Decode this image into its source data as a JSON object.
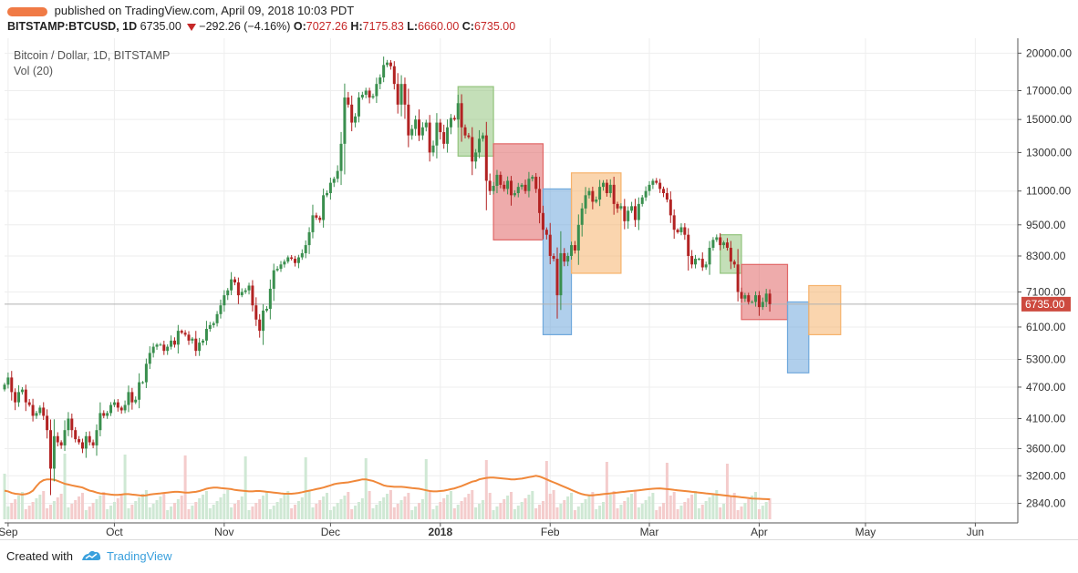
{
  "header": {
    "author_name": "",
    "published_text": "published on TradingView.com, April 09, 2018 10:03 PDT",
    "symbol": "BITSTAMP:BTCUSD, 1D",
    "last_price": "6735.00",
    "change": "−292.26 (−4.16%)",
    "o_label": "O:",
    "o_value": "7027.26",
    "h_label": "H:",
    "h_value": "7175.83",
    "l_label": "L:",
    "l_value": "6660.00",
    "c_label": "C:",
    "c_value": "6735.00"
  },
  "legend": {
    "series_title": "Bitcoin / Dollar, 1D, BITSTAMP",
    "volume_label": "Vol (20)"
  },
  "footer": {
    "created_with": "Created with",
    "brand": "TradingView"
  },
  "colors": {
    "up": "#3a8f4e",
    "down": "#b22222",
    "vol_up": "#cfe8d4",
    "vol_down": "#f4cccc",
    "vol_ma": "#f0883a",
    "price_tag": "#cd4a3f",
    "green_box": "#93c47d",
    "red_box": "#e06666",
    "blue_box": "#6fa8dc",
    "orange_box": "#f6b26b"
  },
  "chart_data": {
    "type": "candlestick",
    "title": "Bitcoin / Dollar, 1D, BITSTAMP",
    "y_scale": "log",
    "ylim": [
      2650,
      21000
    ],
    "y_ticks": [
      20000,
      17000,
      15000,
      13000,
      11000,
      9500,
      8300,
      7100,
      6100,
      5300,
      4700,
      4100,
      3600,
      3200,
      2840
    ],
    "y_tick_labels": [
      "20000.00",
      "17000.00",
      "15000.00",
      "13000.00",
      "11000.00",
      "9500.00",
      "8300.00",
      "7100.00",
      "6100.00",
      "5300.00",
      "4700.00",
      "4100.00",
      "3600.00",
      "3200.00",
      "2840.00"
    ],
    "x_start": "2018-08-31",
    "x_end": "2018-06-13",
    "x_ticks": [
      {
        "date": "2017-09-01",
        "label": "Sep",
        "bold": false
      },
      {
        "date": "2017-10-01",
        "label": "Oct",
        "bold": false
      },
      {
        "date": "2017-11-01",
        "label": "Nov",
        "bold": false
      },
      {
        "date": "2017-12-01",
        "label": "Dec",
        "bold": false
      },
      {
        "date": "2018-01-01",
        "label": "2018",
        "bold": true
      },
      {
        "date": "2018-02-01",
        "label": "Feb",
        "bold": false
      },
      {
        "date": "2018-03-01",
        "label": "Mar",
        "bold": false
      },
      {
        "date": "2018-04-01",
        "label": "Apr",
        "bold": false
      },
      {
        "date": "2018-05-01",
        "label": "May",
        "bold": false
      },
      {
        "date": "2018-06-01",
        "label": "Jun",
        "bold": false
      }
    ],
    "last_price": 6735,
    "last_price_label": "6735.00",
    "close_series": {
      "start_date": "2017-08-31",
      "values": [
        4750,
        4900,
        4600,
        4400,
        4600,
        4650,
        4400,
        4350,
        4150,
        4200,
        4300,
        4150,
        3900,
        3300,
        3800,
        3700,
        3650,
        3900,
        4100,
        3900,
        3750,
        3700,
        3600,
        3800,
        3700,
        3650,
        3900,
        4200,
        4150,
        4200,
        4350,
        4400,
        4300,
        4250,
        4350,
        4600,
        4400,
        4450,
        4800,
        4800,
        5200,
        5450,
        5600,
        5650,
        5650,
        5500,
        5600,
        5750,
        5650,
        6000,
        5950,
        5900,
        5750,
        5800,
        5500,
        5700,
        5750,
        6050,
        6150,
        6200,
        6450,
        6700,
        7000,
        7150,
        7500,
        7400,
        7000,
        7100,
        7150,
        7300,
        6700,
        6300,
        6000,
        6550,
        6600,
        7200,
        7800,
        7850,
        8000,
        8100,
        8250,
        8200,
        8050,
        8250,
        8400,
        8700,
        9200,
        9900,
        9800,
        9700,
        10800,
        10900,
        11400,
        11600,
        12000,
        13500,
        16500,
        16000,
        14800,
        15200,
        16500,
        16700,
        17000,
        16500,
        16600,
        17500,
        18000,
        19000,
        19200,
        18900,
        17500,
        16000,
        17500,
        16000,
        14000,
        14400,
        15000,
        14000,
        14500,
        14800,
        13000,
        13400,
        14800,
        14200,
        13500,
        14500,
        15100,
        15000,
        16100,
        14500,
        14000,
        13900,
        12500,
        13000,
        13800,
        14000,
        11500,
        11000,
        11250,
        11800,
        11300,
        11100,
        11500,
        10800,
        10900,
        11200,
        11300,
        11000,
        11600,
        11700,
        11100,
        10000,
        9300,
        9100,
        8300,
        8200,
        7000,
        8400,
        8100,
        8300,
        8700,
        8500,
        9500,
        10200,
        10800,
        11000,
        10500,
        10600,
        11200,
        11400,
        10900,
        11300,
        10400,
        10200,
        10300,
        9650,
        10100,
        10300,
        9700,
        10400,
        10700,
        11000,
        11300,
        11500,
        11400,
        11100,
        10900,
        10600,
        9900,
        9300,
        9200,
        9400,
        9100,
        8300,
        8000,
        8200,
        8200,
        7900,
        8000,
        8600,
        8900,
        9000,
        8700,
        8800,
        8600,
        8100,
        8000,
        7100,
        6900,
        7000,
        6800,
        6800,
        7000,
        6650,
        6800,
        7050,
        6735
      ]
    },
    "volume_ma": {
      "start_date": "2017-08-31",
      "values": [
        3000,
        2990,
        2970,
        2960,
        2955,
        2950,
        2955,
        2970,
        3000,
        3060,
        3110,
        3140,
        3150,
        3150,
        3145,
        3130,
        3110,
        3090,
        3080,
        3070,
        3060,
        3050,
        3040,
        3020,
        3000,
        2990,
        2975,
        2965,
        2960,
        2955,
        2950,
        2945,
        2945,
        2950,
        2955,
        2955,
        2950,
        2945,
        2940,
        2935,
        2940,
        2950,
        2955,
        2960,
        2965,
        2970,
        2975,
        2980,
        2985,
        2985,
        2980,
        2975,
        2975,
        2980,
        2985,
        2995,
        3010,
        3025,
        3035,
        3040,
        3040,
        3035,
        3030,
        3025,
        3020,
        3010,
        3005,
        3000,
        2995,
        2990,
        2990,
        2995,
        2995,
        2990,
        2985,
        2980,
        2975,
        2970,
        2965,
        2960,
        2960,
        2960,
        2965,
        2970,
        2980,
        2990,
        3000,
        3010,
        3020,
        3030,
        3040,
        3055,
        3070,
        3085,
        3095,
        3100,
        3105,
        3110,
        3120,
        3130,
        3140,
        3150,
        3150,
        3140,
        3130,
        3110,
        3090,
        3070,
        3060,
        3055,
        3050,
        3050,
        3050,
        3045,
        3040,
        3035,
        3030,
        3025,
        3015,
        3005,
        2995,
        2990,
        2990,
        2995,
        3000,
        3010,
        3020,
        3030,
        3045,
        3060,
        3080,
        3100,
        3120,
        3130,
        3150,
        3160,
        3170,
        3175,
        3175,
        3170,
        3165,
        3160,
        3155,
        3150,
        3150,
        3155,
        3160,
        3170,
        3180,
        3190,
        3200,
        3190,
        3170,
        3150,
        3130,
        3110,
        3090,
        3070,
        3050,
        3030,
        3010,
        2990,
        2970,
        2955,
        2945,
        2940,
        2940,
        2945,
        2950,
        2955,
        2960,
        2965,
        2970,
        2975,
        2980,
        2985,
        2990,
        2995,
        3000,
        3005,
        3010,
        3015,
        3020,
        3025,
        3028,
        3030,
        3025,
        3020,
        3015,
        3010,
        3005,
        3000,
        2995,
        2990,
        2985,
        2980,
        2975,
        2970,
        2965,
        2960,
        2955,
        2950,
        2945,
        2940,
        2935,
        2930,
        2925,
        2920,
        2915,
        2910,
        2905,
        2900,
        2898,
        2896,
        2894,
        2892,
        2890
      ]
    },
    "rectangles": [
      {
        "color": "green",
        "x0": "2018-01-06",
        "x1": "2018-01-16",
        "y_low": 12800,
        "y_high": 17300
      },
      {
        "color": "red",
        "x0": "2018-01-16",
        "x1": "2018-01-30",
        "y_low": 8900,
        "y_high": 13500
      },
      {
        "color": "blue",
        "x0": "2018-01-30",
        "x1": "2018-02-07",
        "y_low": 5900,
        "y_high": 11100
      },
      {
        "color": "orange",
        "x0": "2018-02-07",
        "x1": "2018-02-21",
        "y_low": 7700,
        "y_high": 11900
      },
      {
        "color": "green",
        "x0": "2018-03-21",
        "x1": "2018-03-27",
        "y_low": 7700,
        "y_high": 9100
      },
      {
        "color": "red",
        "x0": "2018-03-27",
        "x1": "2018-04-09",
        "y_low": 6300,
        "y_high": 8000
      },
      {
        "color": "blue",
        "x0": "2018-04-09",
        "x1": "2018-04-15",
        "y_low": 5000,
        "y_high": 6800
      },
      {
        "color": "orange",
        "x0": "2018-04-15",
        "x1": "2018-04-24",
        "y_low": 5900,
        "y_high": 7300
      }
    ]
  }
}
